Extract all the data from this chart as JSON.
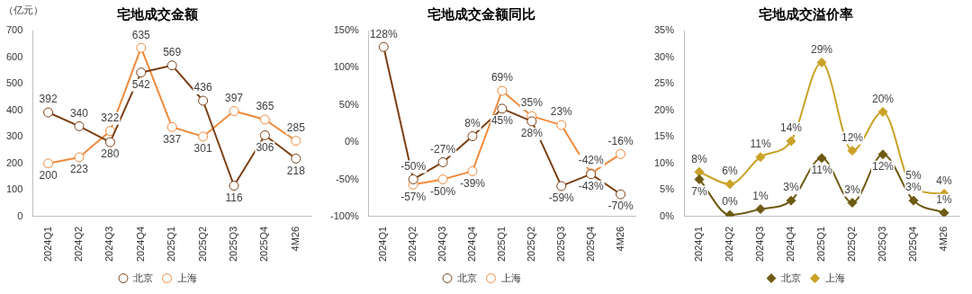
{
  "chart_data": [
    {
      "type": "line",
      "title": "宅地成交金额",
      "ylabel": "（亿元）",
      "categories": [
        "2024Q1",
        "2024Q2",
        "2024Q3",
        "2024Q4",
        "2025Q1",
        "2025Q2",
        "2025Q3",
        "2025Q4",
        "4M26"
      ],
      "series": [
        {
          "name": "北京",
          "color": "#7b3f13",
          "values": [
            392,
            340,
            280,
            542,
            569,
            436,
            116,
            306,
            218
          ]
        },
        {
          "name": "上海",
          "color": "#f08a3c",
          "values": [
            200,
            223,
            322,
            635,
            337,
            301,
            397,
            365,
            285
          ]
        }
      ],
      "ylim": [
        0,
        700
      ],
      "yticks": [
        0,
        100,
        200,
        300,
        400,
        500,
        600,
        700
      ],
      "grid": false,
      "legend": "bottom",
      "marker": "circle",
      "data_labels": true
    },
    {
      "type": "line",
      "title": "宅地成交金额同比",
      "categories": [
        "2024Q1",
        "2024Q2",
        "2024Q3",
        "2024Q4",
        "2025Q1",
        "2025Q2",
        "2025Q3",
        "2025Q4",
        "4M26"
      ],
      "series": [
        {
          "name": "北京",
          "color": "#7b3f13",
          "values": [
            128,
            -50,
            -27,
            8,
            45,
            28,
            -59,
            -43,
            -70
          ],
          "value_labels": [
            "128%",
            "-50%",
            "-27%",
            "8%",
            "45%",
            "28%",
            "-59%",
            "-43%",
            "-70%"
          ]
        },
        {
          "name": "上海",
          "color": "#f08a3c",
          "values": [
            null,
            -57,
            -50,
            -39,
            69,
            35,
            23,
            -42,
            -16
          ],
          "value_labels": [
            null,
            "-57%",
            "-50%",
            "-39%",
            "69%",
            "35%",
            "23%",
            "-42%",
            "-16%"
          ]
        }
      ],
      "ylim": [
        -100,
        150
      ],
      "yticks": [
        {
          "value": -100,
          "label": "-100%"
        },
        {
          "value": -50,
          "label": "-50%"
        },
        {
          "value": 0,
          "label": "0%"
        },
        {
          "value": 50,
          "label": "50%"
        },
        {
          "value": 100,
          "label": "100%"
        },
        {
          "value": 150,
          "label": "150%"
        }
      ],
      "grid": false,
      "legend": "bottom",
      "marker": "circle"
    },
    {
      "type": "line",
      "title": "宅地成交溢价率",
      "categories": [
        "2024Q1",
        "2024Q2",
        "2024Q3",
        "2024Q4",
        "2025Q1",
        "2025Q2",
        "2025Q3",
        "2025Q4",
        "4M26"
      ],
      "series": [
        {
          "name": "北京",
          "color": "#6e5a12",
          "values": [
            7,
            0.3,
            1.4,
            3,
            11,
            2.6,
            11.7,
            3,
            0.7
          ],
          "value_labels": [
            "7%",
            "0%",
            "1%",
            "3%",
            "11%",
            "3%",
            "12%",
            "3%",
            "1%"
          ]
        },
        {
          "name": "上海",
          "color": "#c9a227",
          "values": [
            8.4,
            6.1,
            11.2,
            14.2,
            29,
            12.4,
            19.7,
            5.2,
            4.3
          ],
          "value_labels": [
            "8%",
            "6%",
            "11%",
            "14%",
            "29%",
            "12%",
            "20%",
            "5%",
            "4%"
          ]
        }
      ],
      "ylim": [
        0,
        35
      ],
      "yticks": [
        {
          "value": 0,
          "label": "0%"
        },
        {
          "value": 5,
          "label": "5%"
        },
        {
          "value": 10,
          "label": "10%"
        },
        {
          "value": 15,
          "label": "15%"
        },
        {
          "value": 20,
          "label": "20%"
        },
        {
          "value": 25,
          "label": "25%"
        },
        {
          "value": 30,
          "label": "30%"
        },
        {
          "value": 35,
          "label": "35%"
        }
      ],
      "grid": false,
      "legend": "bottom",
      "marker": "diamond"
    }
  ]
}
